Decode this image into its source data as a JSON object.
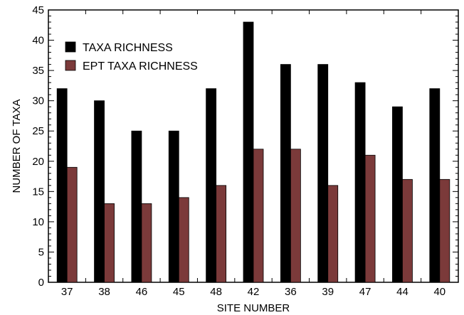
{
  "chart_data": {
    "type": "bar",
    "xlabel": "SITE NUMBER",
    "ylabel": "NUMBER OF TAXA",
    "ylim": [
      0,
      45
    ],
    "y_major_ticks": [
      0,
      5,
      10,
      15,
      20,
      25,
      30,
      35,
      40,
      45
    ],
    "y_minor_step": 1,
    "grid": false,
    "legend_position": "top-left",
    "categories": [
      "37",
      "38",
      "46",
      "45",
      "48",
      "42",
      "36",
      "39",
      "47",
      "44",
      "40"
    ],
    "series": [
      {
        "name": "TAXA RICHNESS",
        "color": "#000000",
        "values": [
          32,
          30,
          25,
          25,
          32,
          43,
          36,
          36,
          33,
          29,
          32
        ]
      },
      {
        "name": "EPT TAXA RICHNESS",
        "color": "#7b3a3a",
        "values": [
          19,
          13,
          13,
          14,
          16,
          22,
          22,
          16,
          21,
          17,
          17
        ]
      }
    ]
  }
}
